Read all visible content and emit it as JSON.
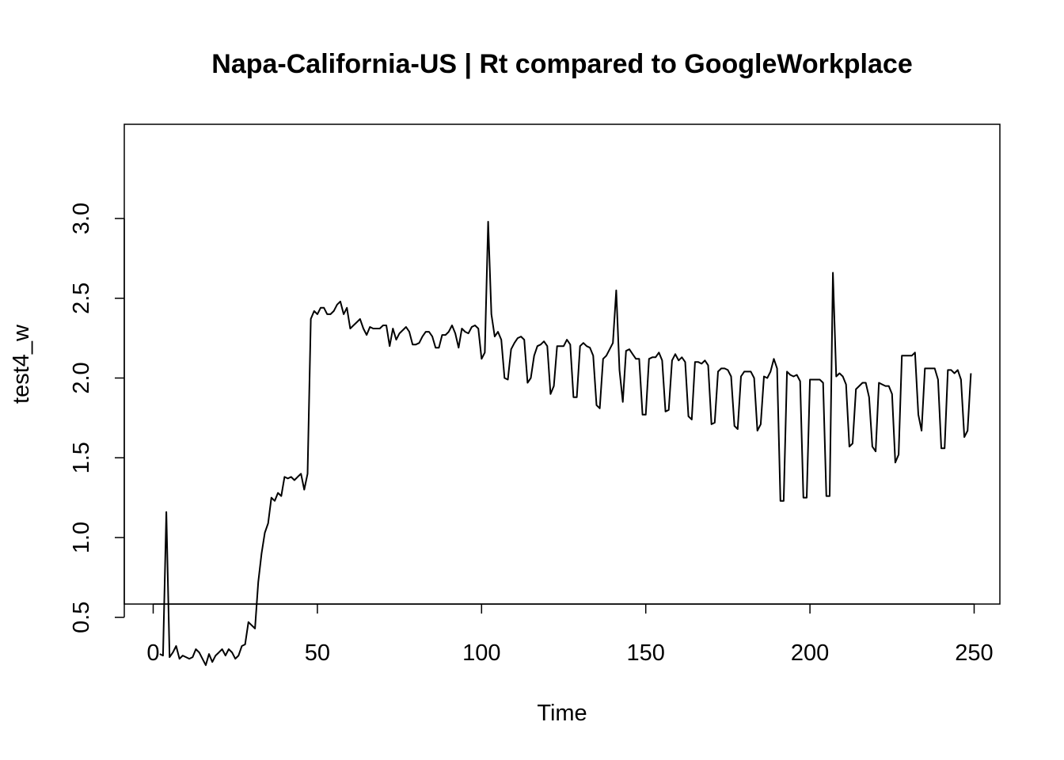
{
  "chart_data": {
    "type": "line",
    "title": "Napa-California-US | Rt compared to GoogleWorkplace",
    "xlabel": "Time",
    "ylabel": "test4_w",
    "xlim": [
      0,
      250
    ],
    "ylim": [
      0.2,
      3.0
    ],
    "x_ticks": [
      "0",
      "50",
      "100",
      "150",
      "200",
      "250"
    ],
    "y_ticks": [
      "0.5",
      "1.0",
      "1.5",
      "2.0",
      "2.5",
      "3.0"
    ],
    "grid": false,
    "line_color": "#000000",
    "series": [
      {
        "x_start": 2,
        "values": [
          0.27,
          0.26,
          1.16,
          0.25,
          0.28,
          0.32,
          0.24,
          0.26,
          0.25,
          0.24,
          0.25,
          0.3,
          0.28,
          0.24,
          0.2,
          0.27,
          0.22,
          0.26,
          0.28,
          0.3,
          0.26,
          0.3,
          0.28,
          0.24,
          0.26,
          0.32,
          0.33,
          0.47,
          0.45,
          0.43,
          0.72,
          0.9,
          1.03,
          1.09,
          1.25,
          1.23,
          1.28,
          1.26,
          1.38,
          1.37,
          1.38,
          1.36,
          1.38,
          1.4,
          1.3,
          1.4,
          2.37,
          2.42,
          2.4,
          2.44,
          2.44,
          2.4,
          2.4,
          2.42,
          2.46,
          2.48,
          2.4,
          2.44,
          2.31,
          2.33,
          2.35,
          2.37,
          2.31,
          2.27,
          2.32,
          2.31,
          2.31,
          2.31,
          2.33,
          2.33,
          2.2,
          2.31,
          2.24,
          2.28,
          2.3,
          2.32,
          2.29,
          2.21,
          2.21,
          2.22,
          2.26,
          2.29,
          2.29,
          2.26,
          2.19,
          2.19,
          2.27,
          2.27,
          2.29,
          2.33,
          2.28,
          2.19,
          2.31,
          2.29,
          2.28,
          2.32,
          2.33,
          2.31,
          2.12,
          2.16,
          2.98,
          2.4,
          2.26,
          2.29,
          2.24,
          2.0,
          1.99,
          2.18,
          2.22,
          2.25,
          2.26,
          2.24,
          1.97,
          2.0,
          2.14,
          2.2,
          2.21,
          2.23,
          2.2,
          1.9,
          1.95,
          2.2,
          2.2,
          2.2,
          2.24,
          2.21,
          1.88,
          1.88,
          2.2,
          2.22,
          2.2,
          2.19,
          2.14,
          1.83,
          1.81,
          2.12,
          2.14,
          2.18,
          2.22,
          2.55,
          2.05,
          1.85,
          2.17,
          2.18,
          2.15,
          2.12,
          2.12,
          1.77,
          1.77,
          2.12,
          2.13,
          2.13,
          2.16,
          2.11,
          1.79,
          1.8,
          2.11,
          2.15,
          2.11,
          2.13,
          2.1,
          1.76,
          1.74,
          2.1,
          2.1,
          2.09,
          2.11,
          2.08,
          1.71,
          1.72,
          2.04,
          2.06,
          2.06,
          2.05,
          2.01,
          1.7,
          1.68,
          2.01,
          2.04,
          2.04,
          2.04,
          2.0,
          1.67,
          1.71,
          2.01,
          2.0,
          2.04,
          2.12,
          2.06,
          1.23,
          1.23,
          2.04,
          2.02,
          2.01,
          2.02,
          1.98,
          1.25,
          1.25,
          1.99,
          1.99,
          1.99,
          1.99,
          1.97,
          1.26,
          1.26,
          2.66,
          2.01,
          2.03,
          2.01,
          1.96,
          1.57,
          1.59,
          1.93,
          1.95,
          1.97,
          1.97,
          1.88,
          1.57,
          1.54,
          1.97,
          1.96,
          1.95,
          1.95,
          1.9,
          1.47,
          1.52,
          2.14,
          2.14,
          2.14,
          2.14,
          2.16,
          1.77,
          1.67,
          2.06,
          2.06,
          2.06,
          2.06,
          1.99,
          1.56,
          1.56,
          2.05,
          2.05,
          2.03,
          2.05,
          1.99,
          1.63,
          1.67,
          2.03
        ]
      }
    ]
  }
}
